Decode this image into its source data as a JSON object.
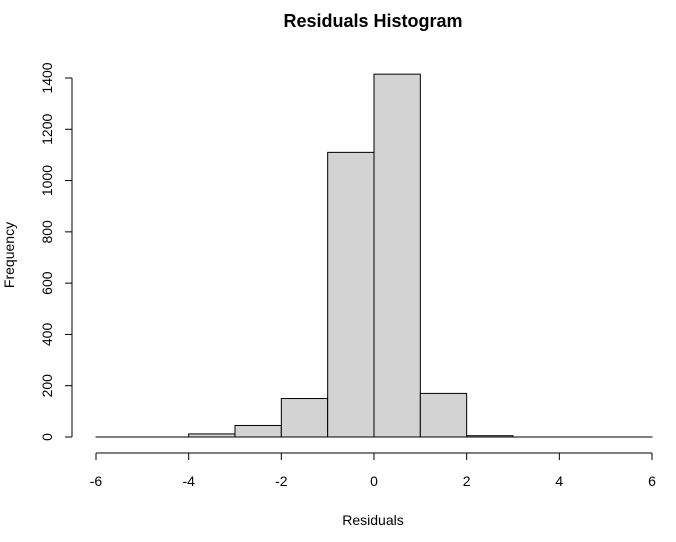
{
  "chart_data": {
    "type": "bar",
    "title": "Residuals Histogram",
    "xlabel": "Residuals",
    "ylabel": "Frequency",
    "bin_edges": [
      -6,
      -5,
      -4,
      -3,
      -2,
      -1,
      0,
      1,
      2,
      3,
      4,
      5,
      6
    ],
    "values": [
      0,
      0,
      12,
      45,
      150,
      1110,
      1415,
      170,
      5,
      0,
      0,
      0
    ],
    "xlim": [
      -6,
      6
    ],
    "ylim": [
      0,
      1400
    ],
    "x_ticks": [
      "-6",
      "-4",
      "-2",
      "0",
      "2",
      "4",
      "6"
    ],
    "y_ticks": [
      "0",
      "200",
      "400",
      "600",
      "800",
      "1000",
      "1200",
      "1400"
    ],
    "bar_fill": "#d3d3d3",
    "bar_stroke": "#000000",
    "grid": false
  }
}
